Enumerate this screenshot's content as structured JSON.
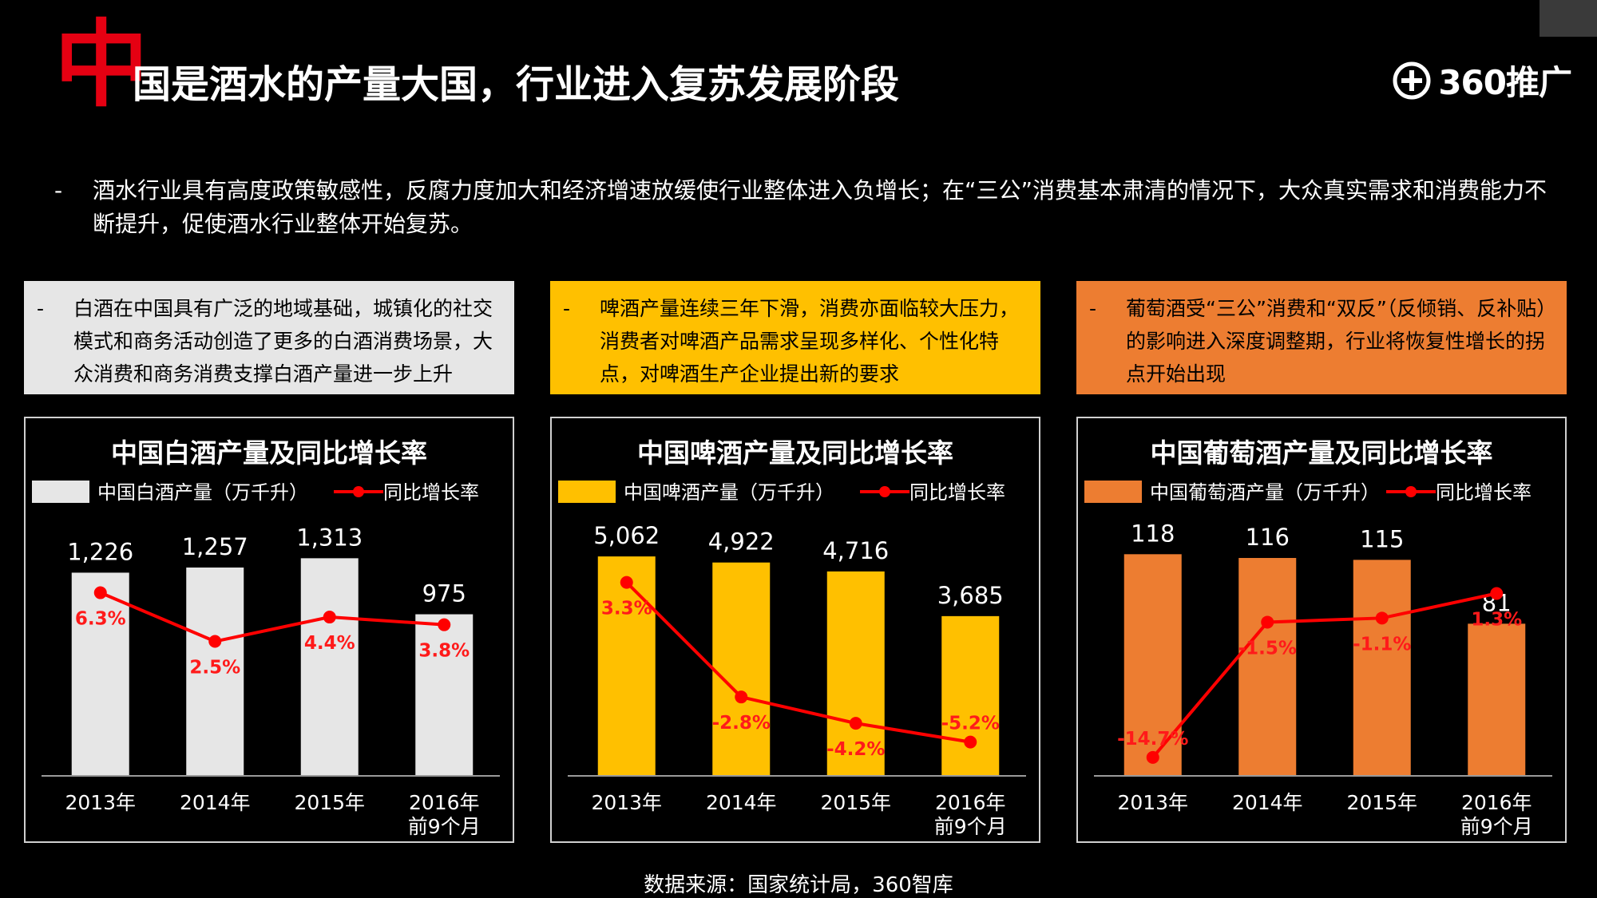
{
  "header": {
    "title_first_char": "中",
    "title_rest": "国是酒水的产量大国，行业进入复苏发展阶段",
    "logo_text": "360推广",
    "logo_icon": "plus-circle-icon"
  },
  "intro": {
    "bullet": "-",
    "text": "酒水行业具有高度政策敏感性，反腐力度加大和经济增速放缓使行业整体进入负增长；在“三公”消费基本肃清的情况下，大众真实需求和消费能力不断提升，促使酒水行业整体开始复苏。"
  },
  "boxes": [
    {
      "bullet": "-",
      "text": "白酒在中国具有广泛的地域基础，城镇化的社交模式和商务活动创造了更多的白酒消费场景，大众消费和商务消费支撑白酒产量进一步上升"
    },
    {
      "bullet": "-",
      "text": "啤酒产量连续三年下滑，消费亦面临较大压力，消费者对啤酒产品需求呈现多样化、个性化特点，对啤酒生产企业提出新的要求"
    },
    {
      "bullet": "-",
      "text": "葡萄酒受“三公”消费和“双反”（反倾销、反补贴）的影响进入深度调整期，行业将恢复性增长的拐点开始出现"
    }
  ],
  "colors": {
    "title_red": "#e50012",
    "line_red": "#ff0000",
    "label_red": "#ff1a1a",
    "bar_colors": [
      "#e6e6e6",
      "#ffc000",
      "#ed7d31"
    ]
  },
  "chart_data": [
    {
      "type": "bar",
      "title": "中国白酒产量及同比增长率",
      "categories": [
        "2013年",
        "2014年",
        "2015年",
        "2016年\n前9个月"
      ],
      "series": [
        {
          "name": "中国白酒产量（万千升）",
          "type": "bar",
          "values": [
            1226,
            1257,
            1313,
            975
          ],
          "labels": [
            "1,226",
            "1,257",
            "1,313",
            "975"
          ]
        },
        {
          "name": "同比增长率",
          "type": "line",
          "values": [
            6.3,
            2.5,
            4.4,
            3.8
          ],
          "labels": [
            "6.3%",
            "2.5%",
            "4.4%",
            "3.8%"
          ]
        }
      ],
      "bar_ylim": [
        0,
        1700
      ],
      "line_ylim": [
        -8,
        14
      ],
      "legend_position": "top"
    },
    {
      "type": "bar",
      "title": "中国啤酒产量及同比增长率",
      "categories": [
        "2013年",
        "2014年",
        "2015年",
        "2016年\n前9个月"
      ],
      "series": [
        {
          "name": "中国啤酒产量（万千升）",
          "type": "bar",
          "values": [
            5062,
            4922,
            4716,
            3685
          ],
          "labels": [
            "5,062",
            "4,922",
            "4,716",
            "3,685"
          ]
        },
        {
          "name": "同比增长率",
          "type": "line",
          "values": [
            3.3,
            -2.8,
            -4.2,
            -5.2
          ],
          "labels": [
            "3.3%",
            "-2.8%",
            "-4.2%",
            "-5.2%"
          ]
        }
      ],
      "bar_ylim": [
        0,
        6500
      ],
      "line_ylim": [
        -7,
        8
      ],
      "legend_position": "top"
    },
    {
      "type": "bar",
      "title": "中国葡萄酒产量及同比增长率",
      "categories": [
        "2013年",
        "2014年",
        "2015年",
        "2016年\n前9个月"
      ],
      "series": [
        {
          "name": "中国葡萄酒产量（万千升）",
          "type": "bar",
          "values": [
            118,
            116,
            115,
            81
          ],
          "labels": [
            "118",
            "116",
            "115",
            "81"
          ]
        },
        {
          "name": "同比增长率",
          "type": "line",
          "values": [
            -14.7,
            -1.5,
            -1.1,
            1.3
          ],
          "labels": [
            "-14.7%",
            "-1.5%",
            "-1.1%",
            "1.3%"
          ]
        }
      ],
      "bar_ylim": [
        0,
        150
      ],
      "line_ylim": [
        -16.5,
        11
      ],
      "legend_position": "top"
    }
  ],
  "footer": {
    "source": "数据来源：国家统计局，360智库"
  }
}
